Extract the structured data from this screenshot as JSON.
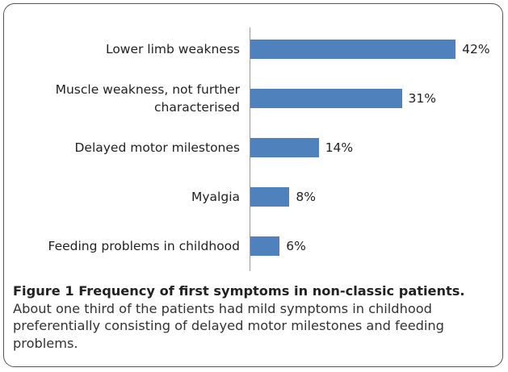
{
  "chart_data": {
    "type": "bar",
    "orientation": "horizontal",
    "categories": [
      "Lower limb weakness",
      "Muscle weakness, not further characterised",
      "Delayed motor milestones",
      "Myalgia",
      "Feeding problems in childhood"
    ],
    "values": [
      42,
      31,
      14,
      8,
      6
    ],
    "value_labels": [
      "42%",
      "31%",
      "14%",
      "8%",
      "6%"
    ],
    "color": "#4f81bd"
  },
  "caption": {
    "title": "Figure 1 Frequency of first symptoms in non-classic patients.",
    "text": "About one third of the patients had mild symptoms in childhood preferentially consisting of delayed motor milestones and feeding problems."
  }
}
